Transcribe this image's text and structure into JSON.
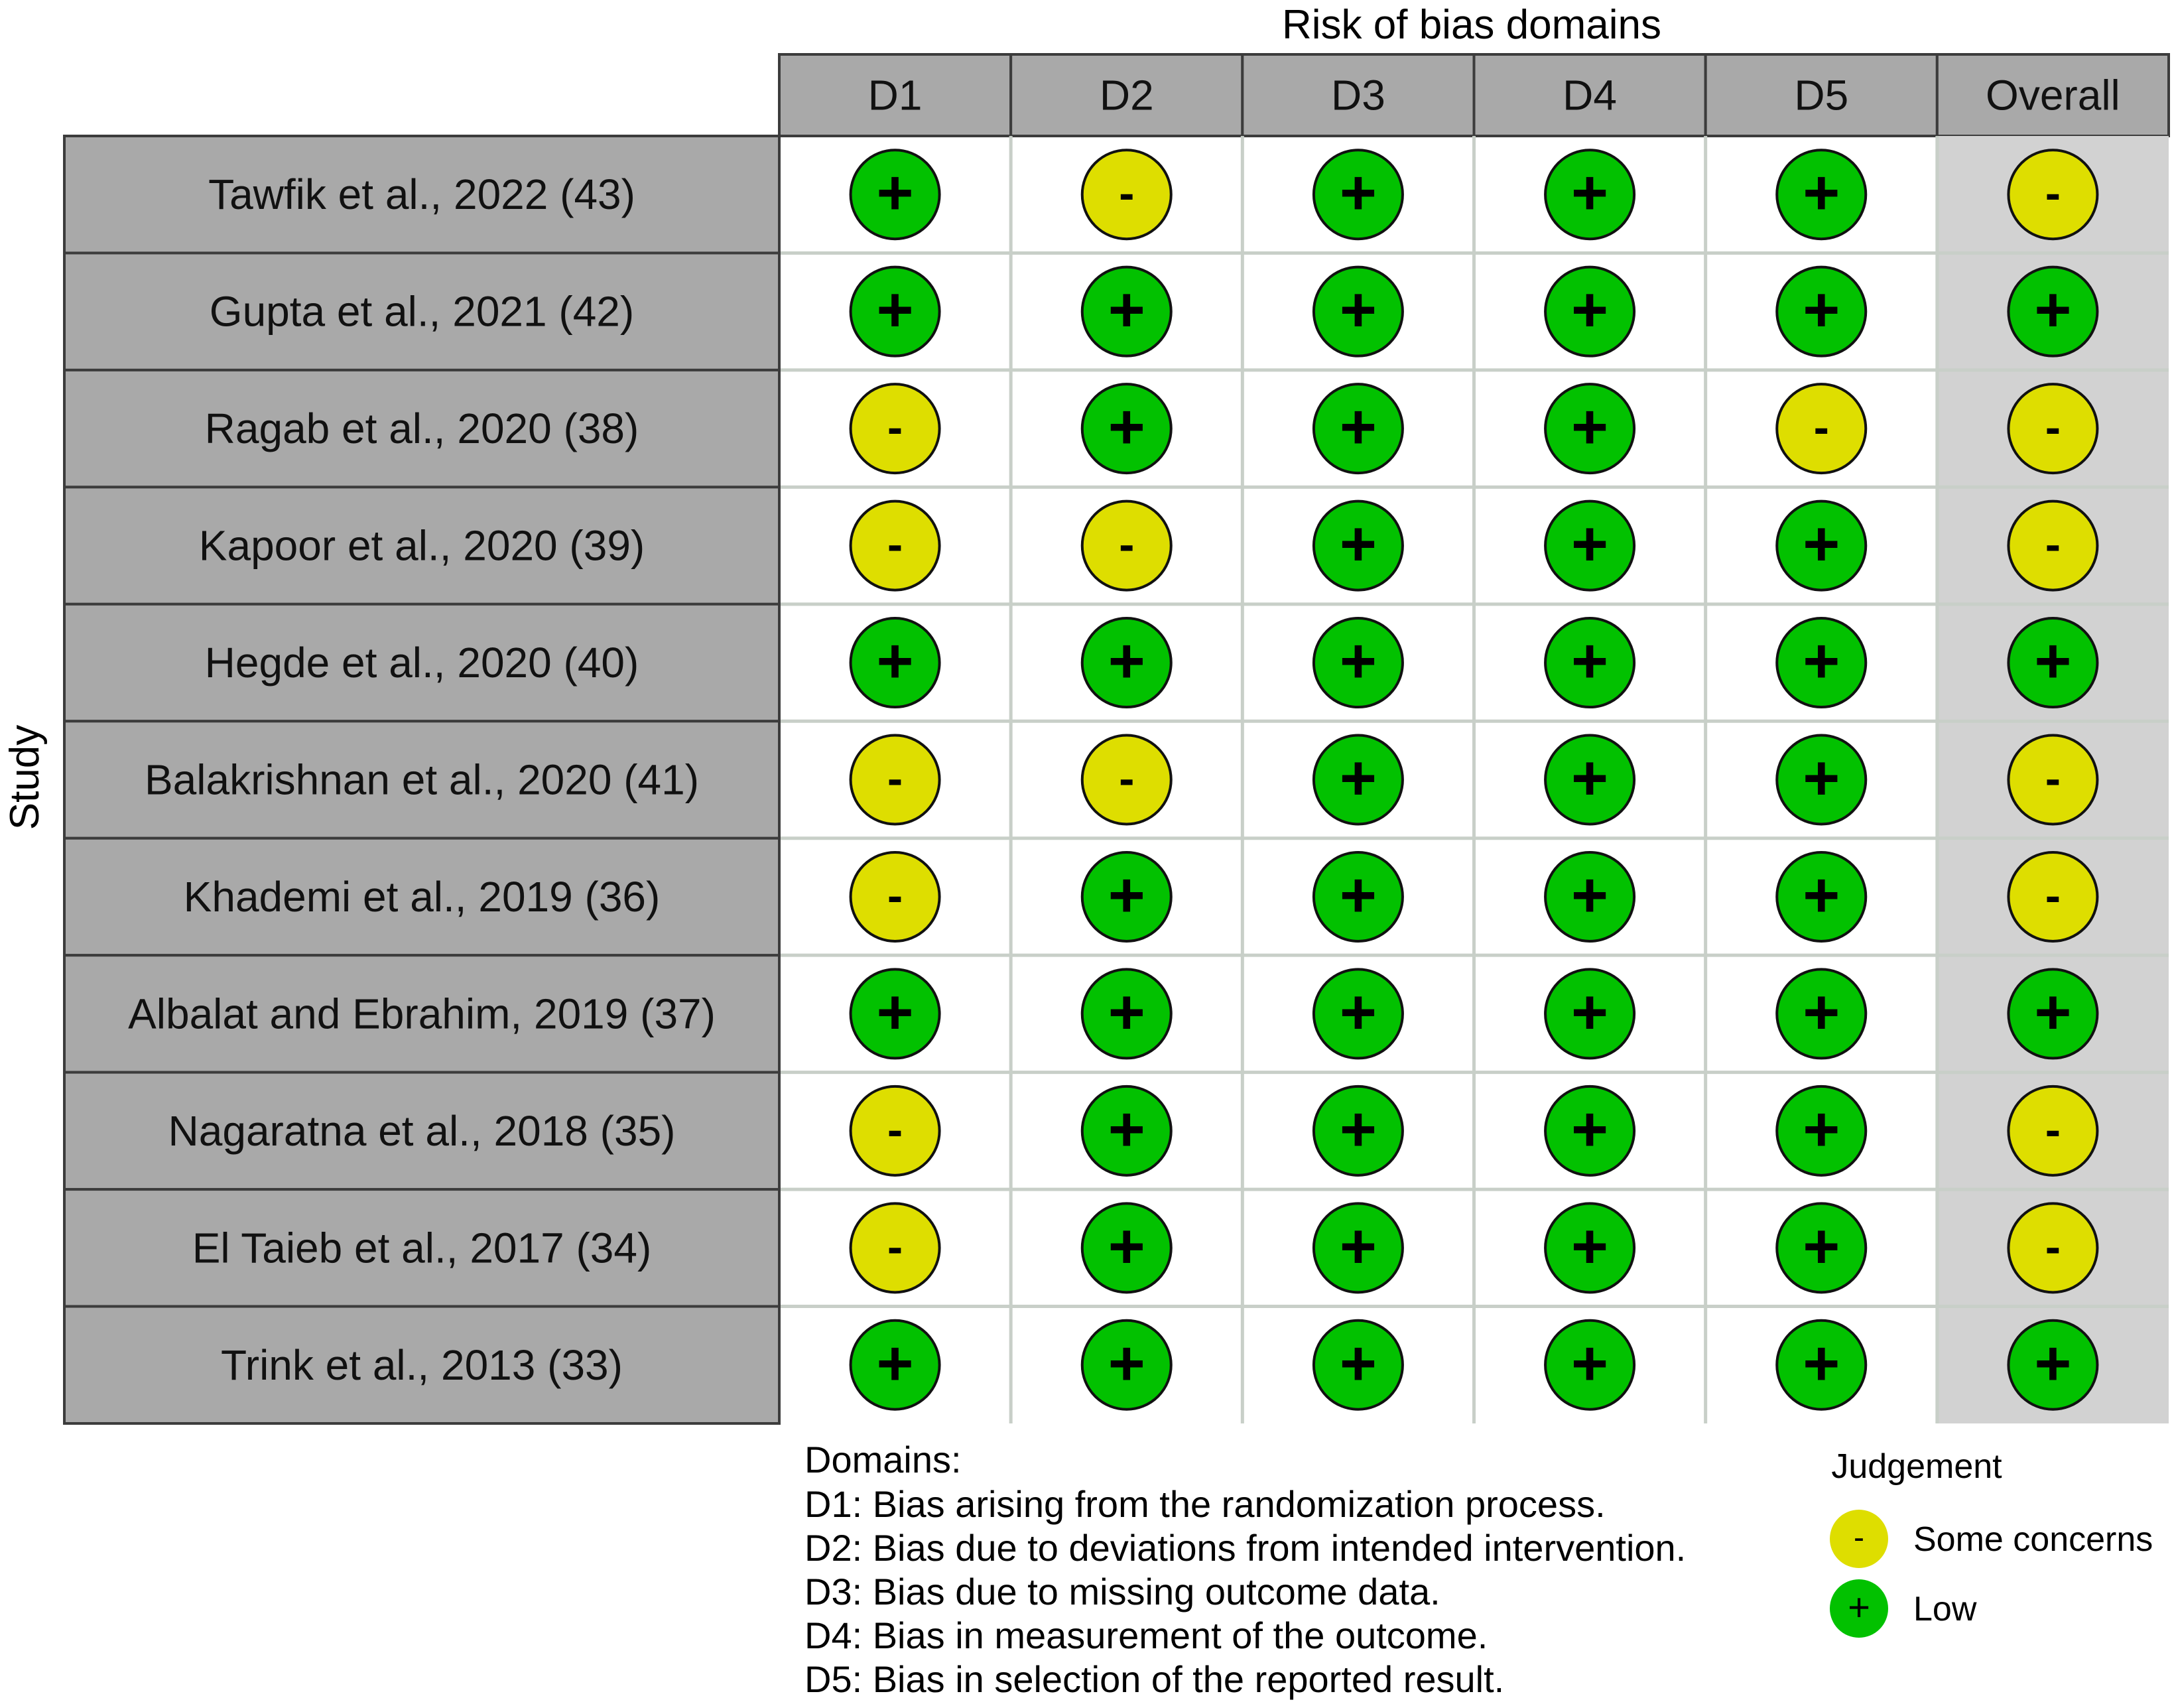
{
  "chart_data": {
    "type": "table",
    "title": "Risk of bias domains",
    "ylabel": "Study",
    "columns": [
      "D1",
      "D2",
      "D3",
      "D4",
      "D5",
      "Overall"
    ],
    "rows": [
      {
        "study": "Tawfik et al., 2022 (43)",
        "judgements": [
          "low",
          "some",
          "low",
          "low",
          "low",
          "some"
        ]
      },
      {
        "study": "Gupta et al., 2021 (42)",
        "judgements": [
          "low",
          "low",
          "low",
          "low",
          "low",
          "low"
        ]
      },
      {
        "study": "Ragab et al., 2020 (38)",
        "judgements": [
          "some",
          "low",
          "low",
          "low",
          "some",
          "some"
        ]
      },
      {
        "study": "Kapoor et al., 2020 (39)",
        "judgements": [
          "some",
          "some",
          "low",
          "low",
          "low",
          "some"
        ]
      },
      {
        "study": "Hegde et al., 2020 (40)",
        "judgements": [
          "low",
          "low",
          "low",
          "low",
          "low",
          "low"
        ]
      },
      {
        "study": "Balakrishnan et al., 2020 (41)",
        "judgements": [
          "some",
          "some",
          "low",
          "low",
          "low",
          "some"
        ]
      },
      {
        "study": "Khademi et al., 2019 (36)",
        "judgements": [
          "some",
          "low",
          "low",
          "low",
          "low",
          "some"
        ]
      },
      {
        "study": "Albalat and Ebrahim, 2019 (37)",
        "judgements": [
          "low",
          "low",
          "low",
          "low",
          "low",
          "low"
        ]
      },
      {
        "study": "Nagaratna et al., 2018 (35)",
        "judgements": [
          "some",
          "low",
          "low",
          "low",
          "low",
          "some"
        ]
      },
      {
        "study": "El Taieb et al., 2017 (34)",
        "judgements": [
          "some",
          "low",
          "low",
          "low",
          "low",
          "some"
        ]
      },
      {
        "study": "Trink et al., 2013 (33)",
        "judgements": [
          "low",
          "low",
          "low",
          "low",
          "low",
          "low"
        ]
      }
    ],
    "judgement_levels": {
      "some": {
        "symbol": "-",
        "label": "Some concerns",
        "color": "#dede00"
      },
      "low": {
        "symbol": "+",
        "label": "Low",
        "color": "#02c100"
      }
    },
    "domains_legend": {
      "heading": "Domains:",
      "items": [
        "D1: Bias arising from the randomization process.",
        "D2: Bias due to deviations from intended intervention.",
        "D3: Bias due to missing outcome data.",
        "D4: Bias in measurement of the outcome.",
        "D5: Bias in selection of the reported result."
      ]
    },
    "judgement_legend": {
      "title": "Judgement",
      "order": [
        "some",
        "low"
      ]
    },
    "colors": {
      "header_fill": "#a9a9a9",
      "overall_fill": "#d2d2d2",
      "border": "#3c3c3c",
      "grid_line": "#c8cfc8"
    }
  }
}
